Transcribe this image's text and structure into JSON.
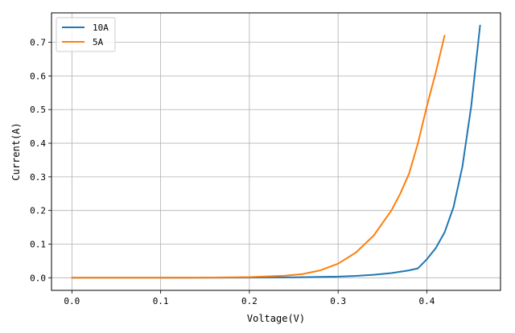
{
  "chart_data": {
    "type": "line",
    "title": "",
    "xlabel": "Voltage(V)",
    "ylabel": "Current(A)",
    "xlim": [
      -0.023,
      0.483
    ],
    "ylim": [
      -0.0375,
      0.7875
    ],
    "xticks": [
      0.0,
      0.1,
      0.2,
      0.3,
      0.4
    ],
    "xtick_labels": [
      "0.0",
      "0.1",
      "0.2",
      "0.3",
      "0.4"
    ],
    "yticks": [
      0.0,
      0.1,
      0.2,
      0.3,
      0.4,
      0.5,
      0.6,
      0.7
    ],
    "ytick_labels": [
      "0.0",
      "0.1",
      "0.2",
      "0.3",
      "0.4",
      "0.5",
      "0.6",
      "0.7"
    ],
    "grid": true,
    "legend_position": "top-left",
    "series": [
      {
        "name": "10A",
        "color": "#1f77b4",
        "x": [
          0.0,
          0.05,
          0.1,
          0.15,
          0.2,
          0.25,
          0.3,
          0.32,
          0.34,
          0.36,
          0.38,
          0.39,
          0.4,
          0.41,
          0.42,
          0.43,
          0.44,
          0.45,
          0.46
        ],
        "y": [
          0.0,
          0.0,
          0.0,
          0.0,
          0.0005,
          0.0013,
          0.0035,
          0.0056,
          0.0088,
          0.014,
          0.022,
          0.028,
          0.055,
          0.088,
          0.135,
          0.21,
          0.33,
          0.51,
          0.75
        ]
      },
      {
        "name": "5A",
        "color": "#ff7f0e",
        "x": [
          0.0,
          0.05,
          0.1,
          0.15,
          0.2,
          0.22,
          0.24,
          0.26,
          0.28,
          0.3,
          0.32,
          0.34,
          0.36,
          0.37,
          0.38,
          0.39,
          0.4,
          0.41,
          0.42
        ],
        "y": [
          0.0,
          0.0,
          0.0,
          0.0005,
          0.002,
          0.004,
          0.006,
          0.011,
          0.022,
          0.042,
          0.075,
          0.125,
          0.2,
          0.25,
          0.31,
          0.4,
          0.51,
          0.61,
          0.72
        ]
      }
    ]
  }
}
